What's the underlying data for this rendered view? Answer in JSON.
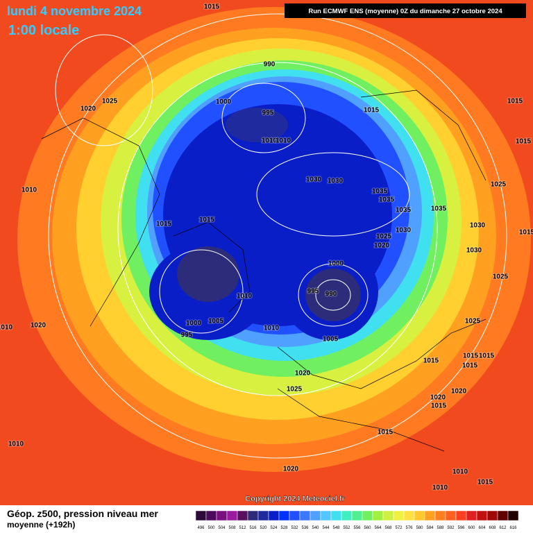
{
  "header": {
    "date": "lundi 4 novembre 2024",
    "time": "1:00 locale",
    "run_info": "Run ECMWF ENS (moyenne) 0Z du dimanche 27 octobre 2024"
  },
  "isobar_labels": [
    1015,
    990,
    1025,
    1020,
    1000,
    995,
    1015,
    1015,
    1010,
    1010,
    1015,
    1010,
    1030,
    1030,
    1035,
    1035,
    1035,
    1035,
    1025,
    1015,
    1015,
    1030,
    1025,
    1020,
    1030,
    1030,
    1015,
    1000,
    1025,
    995,
    990,
    1010,
    1000,
    1005,
    1010,
    1020,
    1010,
    1025,
    995,
    1005,
    1015,
    1015,
    1015,
    1015,
    1020,
    1025,
    1020,
    1020,
    1015,
    1015,
    1010,
    1020,
    1010,
    1015,
    1010
  ],
  "copyright": "Copyright 2024 Meteociel.fr",
  "footer": {
    "title": "Géop. z500, pression niveau mer",
    "subtitle": "moyenne  (+192h)"
  },
  "legend": {
    "ticks": [
      496,
      500,
      504,
      508,
      512,
      516,
      520,
      524,
      528,
      532,
      536,
      540,
      544,
      548,
      552,
      556,
      560,
      564,
      568,
      572,
      576,
      580,
      584,
      588,
      592,
      596,
      600,
      604,
      608,
      612,
      616
    ],
    "colors": [
      "#2d0a3a",
      "#4b0a5a",
      "#7a1080",
      "#9b1a9e",
      "#5a1060",
      "#2c2c7a",
      "#1e2a9e",
      "#0a1ec8",
      "#0032ff",
      "#2050ff",
      "#3c78ff",
      "#50a0ff",
      "#50c8ff",
      "#40e0f0",
      "#40f0c0",
      "#50f090",
      "#70f060",
      "#a0f040",
      "#d0f040",
      "#f0f040",
      "#ffe040",
      "#ffc830",
      "#ffa020",
      "#ff8020",
      "#ff6020",
      "#ff4020",
      "#e02020",
      "#c01010",
      "#a00808",
      "#600000",
      "#200000"
    ]
  }
}
